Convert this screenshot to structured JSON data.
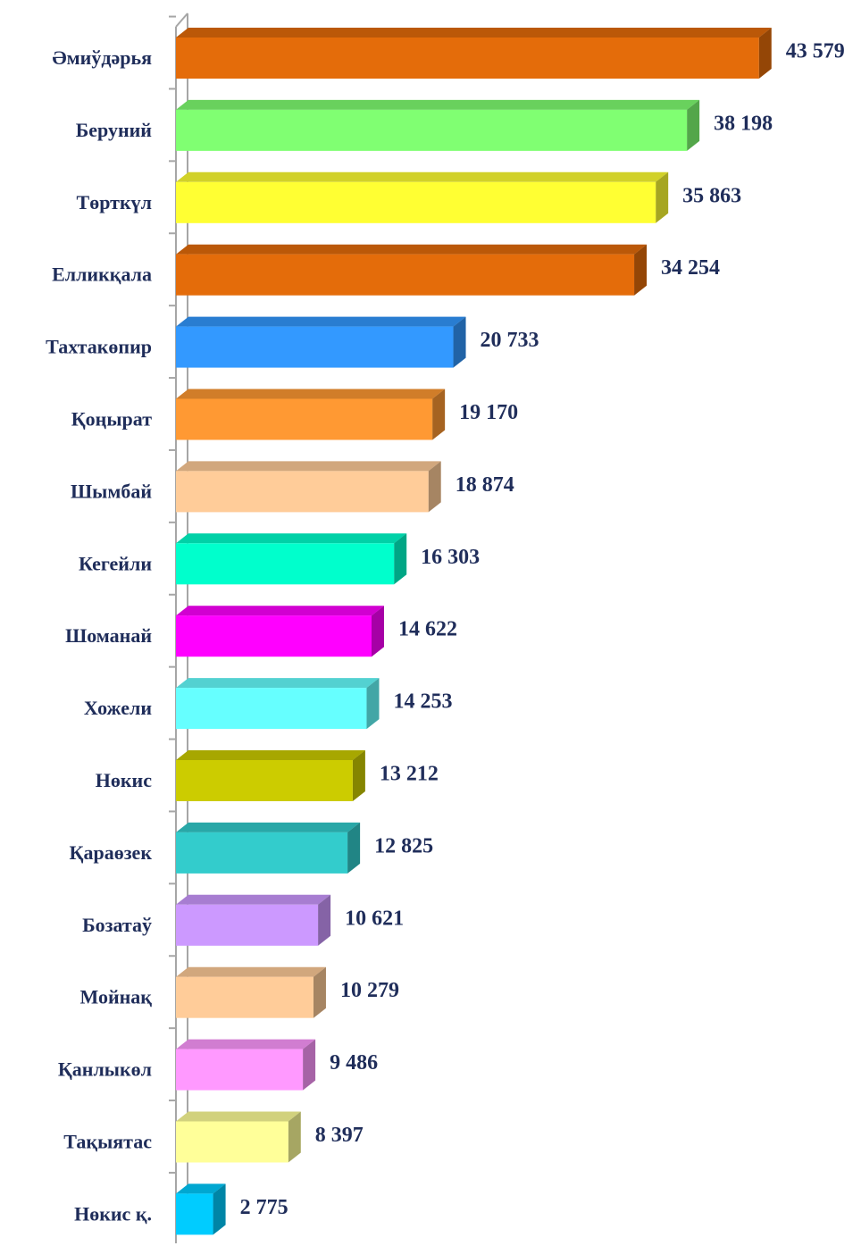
{
  "chart_data": {
    "type": "bar3d_horizontal",
    "categories": [
      "Әмиўдәрья",
      "Беруний",
      "Төрткүл",
      "Елликқала",
      "Тахтакөпир",
      "Қоңырат",
      "Шымбай",
      "Кегейли",
      "Шоманай",
      "Хожели",
      "Нөкис",
      "Қараөзек",
      "Бозатаў",
      "Мойнақ",
      "Қанлыкөл",
      "Тақыятас",
      "Нөкис қ."
    ],
    "values": [
      43579,
      38198,
      35863,
      34254,
      20733,
      19170,
      18874,
      16303,
      14622,
      14253,
      13212,
      12825,
      10621,
      10279,
      9486,
      8397,
      2775
    ],
    "value_labels": [
      "43 579",
      "38 198",
      "35 863",
      "34 254",
      "20 733",
      "19 170",
      "18 874",
      "16 303",
      "14 622",
      "14 253",
      "13 212",
      "12 825",
      "10 621",
      "10 279",
      "9 486",
      "8 397",
      "2 775"
    ],
    "colors": [
      "#e46c0a",
      "#80ff72",
      "#ffff33",
      "#e46c0a",
      "#3399ff",
      "#ff9933",
      "#ffcc99",
      "#00ffcc",
      "#ff00ff",
      "#66ffff",
      "#cccc00",
      "#33cccc",
      "#cc99ff",
      "#ffcc99",
      "#ff99ff",
      "#ffff99",
      "#00ccff"
    ],
    "xlim": [
      0,
      45000
    ]
  }
}
